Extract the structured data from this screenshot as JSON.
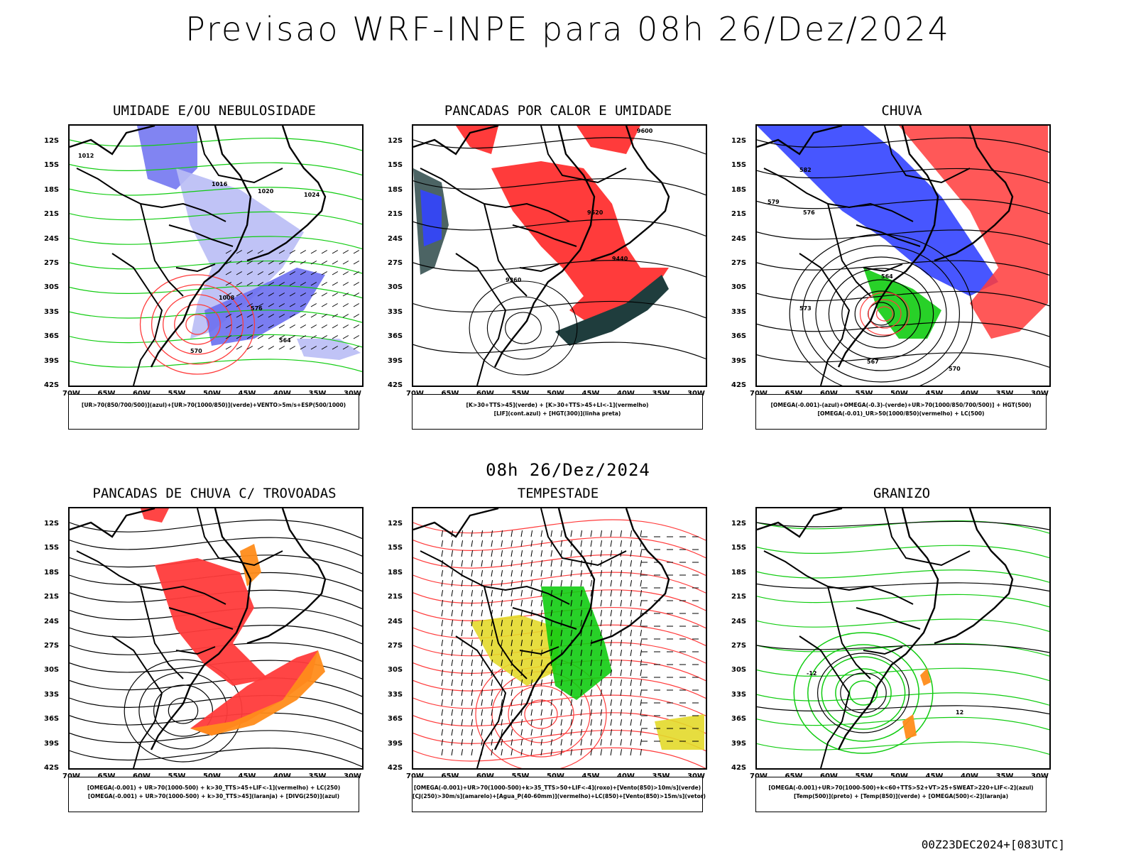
{
  "header": {
    "title": "Previsao WRF-INPE  para 08h 26/Dez/2024",
    "mid_date": "08h 26/Dez/2024",
    "run_stamp": "00Z23DEC2024+[083UTC]"
  },
  "axes": {
    "lat_labels": [
      "12S",
      "15S",
      "18S",
      "21S",
      "24S",
      "27S",
      "30S",
      "33S",
      "36S",
      "39S",
      "42S"
    ],
    "lon_labels": [
      "70W",
      "65W",
      "60W",
      "55W",
      "50W",
      "45W",
      "40W",
      "35W",
      "30W"
    ]
  },
  "colors": {
    "blue": "#3344ff",
    "lightblue": "#b9bdf5",
    "midblue": "#6b6ff0",
    "green": "#11cc11",
    "red": "#ff3b3b",
    "darkteal": "#1f3d3d",
    "orange": "#ff8c1a",
    "yellow": "#e3d92a"
  },
  "panels": [
    {
      "id": "umidade",
      "title": "UMIDADE E/OU NEBULOSIDADE",
      "legend": [
        "[UR>70(850/700/500)](azul)+[UR>70(1000/850)](verde)+VENTO>5m/s+ESP(500/1000)"
      ],
      "contour_labels": [
        "1012",
        "1016",
        "1020",
        "1024",
        "564",
        "570",
        "576",
        "1008"
      ]
    },
    {
      "id": "pancadas_calor",
      "title": "PANCADAS POR CALOR E UMIDADE",
      "legend": [
        "[K>30+TTS>45](verde) + [K>30+TTS>45+LI<-1](vermelho)",
        "[LIF](cont.azul) + [HGT(300)](linha preta)"
      ],
      "contour_labels": [
        "9600",
        "9520",
        "9440",
        "9360"
      ]
    },
    {
      "id": "chuva",
      "title": "CHUVA",
      "legend": [
        "[OMEGA(-0.001)-(azul)+OMEGA(-0.3)-(verde)+UR>70(1000/850/700/500)] + HGT(500)",
        "[OMEGA(-0.01)_UR>50(1000/850)(vermelho) + LC(500)"
      ],
      "contour_labels": [
        "582",
        "579",
        "576",
        "573",
        "567",
        "570",
        "564"
      ]
    },
    {
      "id": "pancadas_trovoadas",
      "title": "PANCADAS DE CHUVA C/ TROVOADAS",
      "legend": [
        "[OMEGA(-0.001) + UR>70(1000-500) + k>30_TTS>45+LIF<-1](vermelho) + LC(250)",
        "[OMEGA(-0.001) + UR>70(1000-500) + k>30_TTS>45](laranja) + [DIVG(250)](azul)"
      ],
      "contour_labels": []
    },
    {
      "id": "tempestade",
      "title": "TEMPESTADE",
      "legend": [
        "[OMEGA(-0.001)+UR>70(1000-500)+k>35_TTS>50+LIF<-4](roxo)+[Vento(850)>10m/s](verde)",
        "[CJ(250)>30m/s](amarelo)+[Agua_P(40-60mm)](vermelho)+LC(850)+[Vento(850)>15m/s](vetor)"
      ],
      "contour_labels": []
    },
    {
      "id": "granizo",
      "title": "GRANIZO",
      "legend": [
        "[OMEGA(-0.001)+UR>70(1000-500)+k<60+TTS>52+VT>25+SWEAT>220+LIF<-2](azul)",
        "[Temp(500)](preto) + [Temp(850)](verde) + [OMEGA(500)<-2](laranja)"
      ],
      "contour_labels": [
        "-12",
        "12"
      ]
    }
  ]
}
